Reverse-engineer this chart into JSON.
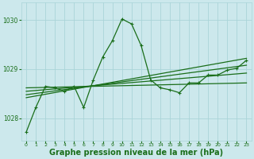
{
  "background_color": "#cce8ec",
  "grid_color": "#aad4d8",
  "line_color": "#1a6e1a",
  "xlabel": "Graphe pression niveau de la mer (hPa)",
  "xlabel_fontsize": 7,
  "xlabel_bold": true,
  "ylim": [
    1027.55,
    1030.35
  ],
  "xlim": [
    -0.5,
    23.5
  ],
  "yticks": [
    1028,
    1029,
    1030
  ],
  "xticks": [
    0,
    1,
    2,
    3,
    4,
    5,
    6,
    7,
    8,
    9,
    10,
    11,
    12,
    13,
    14,
    15,
    16,
    17,
    18,
    19,
    20,
    21,
    22,
    23
  ],
  "main_x": [
    0,
    1,
    2,
    3,
    4,
    5,
    6,
    7,
    8,
    9,
    10,
    11,
    12,
    13,
    14,
    15,
    16,
    17,
    18,
    19,
    20,
    21,
    22,
    23
  ],
  "main_y": [
    1027.72,
    1028.22,
    1028.65,
    1028.62,
    1028.55,
    1028.65,
    1028.22,
    1028.78,
    1029.25,
    1029.58,
    1030.02,
    1029.92,
    1029.48,
    1028.78,
    1028.62,
    1028.58,
    1028.52,
    1028.72,
    1028.72,
    1028.88,
    1028.88,
    1028.98,
    1029.02,
    1029.18
  ],
  "trend1_x": [
    0,
    23
  ],
  "trend1_y": [
    1028.62,
    1028.72
  ],
  "trend2_x": [
    0,
    23
  ],
  "trend2_y": [
    1028.55,
    1028.92
  ],
  "trend3_x": [
    0,
    23
  ],
  "trend3_y": [
    1028.48,
    1029.08
  ],
  "trend4_x": [
    0,
    23
  ],
  "trend4_y": [
    1028.42,
    1029.22
  ],
  "line_width": 0.9,
  "marker_size": 3.5
}
